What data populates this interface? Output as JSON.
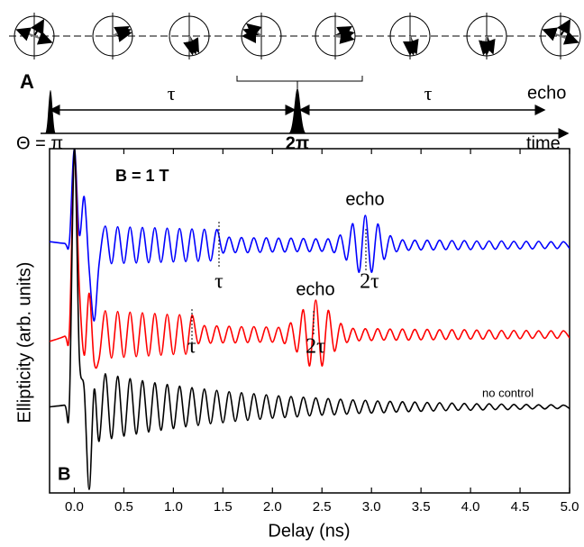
{
  "panel_a": {
    "label": "A",
    "tau_labels": [
      "τ",
      "τ"
    ],
    "echo_label": "echo",
    "pulse_labels": [
      "Θ = π",
      "2π"
    ],
    "axis_label": "time"
  },
  "chart_data": {
    "type": "line",
    "panel_label": "B",
    "xlabel": "Delay (ns)",
    "ylabel": "Ellipticity (arb. units)",
    "annotations": [
      "B = 1 T",
      "echo",
      "τ",
      "2τ",
      "echo",
      "τ",
      "2τ",
      "no control"
    ],
    "xlim": [
      -0.25,
      5.0
    ],
    "ylim": [
      0,
      100
    ],
    "xticks": [
      {
        "value": 0,
        "label": "0.0"
      },
      0.5,
      {
        "value": 1,
        "label": "1.0"
      },
      1.5,
      {
        "value": 2,
        "label": "2.0"
      },
      2.5,
      {
        "value": 3,
        "label": "3.0"
      },
      3.5,
      {
        "value": 4,
        "label": "4.0"
      },
      4.5,
      {
        "value": 5,
        "label": "5.0"
      }
    ],
    "x": [
      -0.25,
      -0.1,
      -0.05,
      0,
      0.05,
      0.1,
      0.15,
      0.2,
      0.25,
      0.3125,
      0.375,
      0.4375,
      0.5,
      0.5625,
      0.625,
      0.6875,
      0.75,
      0.8125,
      0.875,
      0.9375,
      1,
      1.0625,
      1.125,
      1.1875,
      1.25,
      1.3125,
      1.375,
      1.4375,
      1.5,
      1.5625,
      1.625,
      1.6875,
      1.75,
      1.8125,
      1.875,
      1.9375,
      2,
      2.0625,
      2.125,
      2.1875,
      2.25,
      2.3125,
      2.375,
      2.4375,
      2.5,
      2.5625,
      2.625,
      2.6875,
      2.75,
      2.8125,
      2.875,
      2.9375,
      3,
      3.0625,
      3.125,
      3.1875,
      3.25,
      3.3125,
      3.375,
      3.4375,
      3.5,
      3.5625,
      3.625,
      3.6875,
      3.75,
      3.8125,
      3.875,
      3.9375,
      4,
      4.0625,
      4.125,
      4.1875,
      4.25,
      4.3125,
      4.375,
      4.4375,
      4.5,
      4.5625,
      4.625,
      4.6875,
      4.75,
      4.8125,
      4.875,
      4.9375,
      5
    ],
    "series": [
      {
        "color": "#0000ff",
        "values": [
          73,
          72.5,
          73,
          100,
          75,
          86,
          65,
          50,
          66.5,
          77.5,
          66.6,
          77.3,
          66.7,
          77.2,
          66.8,
          77.1,
          66.9,
          77.0,
          67.0,
          76.9,
          67.1,
          76.8,
          67.2,
          76.7,
          67.3,
          76.6,
          67.4,
          76.5,
          69.7,
          74.3,
          69.8,
          74.2,
          69.8,
          74.1,
          69.9,
          74.1,
          70.0,
          74.0,
          70.0,
          74.0,
          70.1,
          73.9,
          70.1,
          73.8,
          70.2,
          73.8,
          69.8,
          74.9,
          67.7,
          78.2,
          64.1,
          80.6,
          64.1,
          78.1,
          67.9,
          74.7,
          70.1,
          73.5,
          70.5,
          73.4,
          70.6,
          73.4,
          70.6,
          73.4,
          70.7,
          73.3,
          70.7,
          73.3,
          70.7,
          73.2,
          70.8,
          73.2,
          70.8,
          73.2,
          70.9,
          73.1,
          70.9,
          73.1,
          70.9,
          73.1,
          71.0,
          73.0,
          71.0,
          73.0,
          71.0
        ]
      },
      {
        "color": "#ff0000",
        "values": [
          44,
          45.5,
          47,
          98,
          60,
          40,
          58,
          38,
          39.0,
          52.9,
          39.2,
          52.7,
          39.4,
          52.5,
          39.6,
          52.3,
          39.8,
          52.1,
          40.0,
          51.9,
          40.2,
          51.8,
          40.3,
          51.6,
          43.4,
          48.6,
          43.5,
          48.5,
          43.6,
          48.4,
          43.6,
          48.3,
          43.7,
          48.3,
          43.8,
          48.2,
          43.8,
          48.1,
          43.4,
          49.4,
          41.0,
          53.2,
          36.9,
          56.0,
          36.9,
          53.0,
          41.2,
          49.2,
          43.7,
          47.8,
          44.2,
          47.7,
          44.3,
          47.7,
          44.4,
          47.6,
          44.4,
          47.6,
          44.4,
          47.5,
          44.5,
          47.5,
          44.5,
          47.4,
          44.6,
          47.4,
          44.6,
          47.4,
          44.7,
          47.3,
          44.7,
          47.3,
          44.7,
          47.2,
          44.8,
          47.2,
          44.8,
          47.2,
          44.9,
          47.1,
          44.9,
          47.1,
          44.9,
          47.1,
          45.0
        ]
      },
      {
        "color": "#000000",
        "values": [
          25,
          25.5,
          26,
          100,
          40,
          30,
          1,
          30,
          15.0,
          34.6,
          15.8,
          33.9,
          16.5,
          33.2,
          17.1,
          32.6,
          17.7,
          32.0,
          18.2,
          31.5,
          18.7,
          31.0,
          19.2,
          30.6,
          19.6,
          30.2,
          20.1,
          29.8,
          20.4,
          29.4,
          20.8,
          29.1,
          21.1,
          28.8,
          21.4,
          28.5,
          21.7,
          28.2,
          21.9,
          28.0,
          22.1,
          27.8,
          22.4,
          27.6,
          22.6,
          27.4,
          22.7,
          27.2,
          22.9,
          27.0,
          23.1,
          26.9,
          23.2,
          26.7,
          23.3,
          26.6,
          23.5,
          26.5,
          23.6,
          26.4,
          23.7,
          26.3,
          23.8,
          26.2,
          23.9,
          26.1,
          24.0,
          26.0,
          24.0,
          25.9,
          24.1,
          25.9,
          24.2,
          25.8,
          24.2,
          25.7,
          24.3,
          25.7,
          24.4,
          25.6,
          24.4,
          25.6,
          24.5,
          25.5,
          24.5
        ]
      }
    ]
  }
}
